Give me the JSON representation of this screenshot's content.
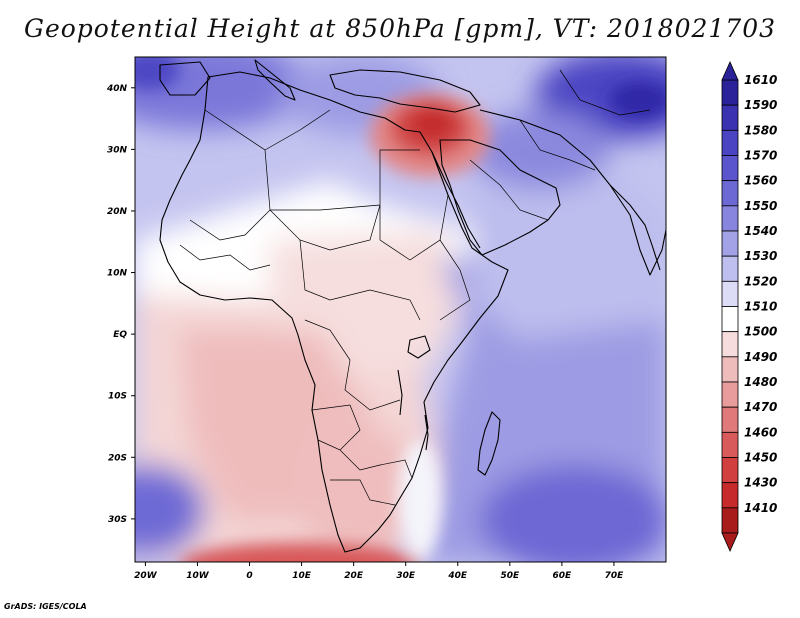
{
  "title": "Geopotential Height at 850hPa [gpm], VT: 2018021703",
  "credit": "GrADS: IGES/COLA",
  "map": {
    "lon_range": [
      -22,
      80
    ],
    "lat_range": [
      -37,
      45
    ],
    "lat_ticks": [
      {
        "value": 40,
        "label": "40N"
      },
      {
        "value": 30,
        "label": "30N"
      },
      {
        "value": 20,
        "label": "20N"
      },
      {
        "value": 10,
        "label": "10N"
      },
      {
        "value": 0,
        "label": "EQ"
      },
      {
        "value": -10,
        "label": "10S"
      },
      {
        "value": -20,
        "label": "20S"
      },
      {
        "value": -30,
        "label": "30S"
      }
    ],
    "lon_ticks": [
      {
        "value": -20,
        "label": "20W"
      },
      {
        "value": -10,
        "label": "10W"
      },
      {
        "value": 0,
        "label": "0"
      },
      {
        "value": 10,
        "label": "10E"
      },
      {
        "value": 20,
        "label": "20E"
      },
      {
        "value": 30,
        "label": "30E"
      },
      {
        "value": 40,
        "label": "40E"
      },
      {
        "value": 50,
        "label": "50E"
      },
      {
        "value": 60,
        "label": "60E"
      },
      {
        "value": 70,
        "label": "70E"
      }
    ],
    "regions": [
      {
        "name": "north-low",
        "lon": 32,
        "lat": 31,
        "value": 1440
      },
      {
        "name": "southern-ocean-low",
        "lon": 18,
        "lat": -35,
        "value": 1475
      },
      {
        "name": "southern-africa",
        "lon": 25,
        "lat": -22,
        "value": 1490
      },
      {
        "name": "gulf-guinea",
        "lon": 0,
        "lat": -5,
        "value": 1500
      },
      {
        "name": "east-indian-ocean-high",
        "lon": 65,
        "lat": -28,
        "value": 1565
      },
      {
        "name": "arabian-sea",
        "lon": 65,
        "lat": 10,
        "value": 1525
      },
      {
        "name": "south-atlantic-high",
        "lon": -18,
        "lat": -30,
        "value": 1560
      },
      {
        "name": "mediterranean-high",
        "lon": -15,
        "lat": 42,
        "value": 1580
      },
      {
        "name": "central-asia-high",
        "lon": 75,
        "lat": 38,
        "value": 1590
      }
    ]
  },
  "colorbar": {
    "levels": [
      {
        "label": "1610",
        "color": "#2b2299"
      },
      {
        "label": "1590",
        "color": "#3a32b0"
      },
      {
        "label": "1580",
        "color": "#4a43c2"
      },
      {
        "label": "1570",
        "color": "#5a55cc"
      },
      {
        "label": "1560",
        "color": "#6c69d5"
      },
      {
        "label": "1550",
        "color": "#8785dd"
      },
      {
        "label": "1540",
        "color": "#a3a2e6"
      },
      {
        "label": "1530",
        "color": "#bfbfef"
      },
      {
        "label": "1520",
        "color": "#dcdcf7"
      },
      {
        "label": "1510",
        "color": "#ffffff"
      },
      {
        "label": "1500",
        "color": "#f6dcdc"
      },
      {
        "label": "1490",
        "color": "#efbcbc"
      },
      {
        "label": "1480",
        "color": "#e89c9c"
      },
      {
        "label": "1470",
        "color": "#e07a7a"
      },
      {
        "label": "1460",
        "color": "#d95a5a"
      },
      {
        "label": "1450",
        "color": "#d23f3f"
      },
      {
        "label": "1430",
        "color": "#c62a2a"
      },
      {
        "label": "1410",
        "color": "#a81c1c"
      }
    ]
  }
}
